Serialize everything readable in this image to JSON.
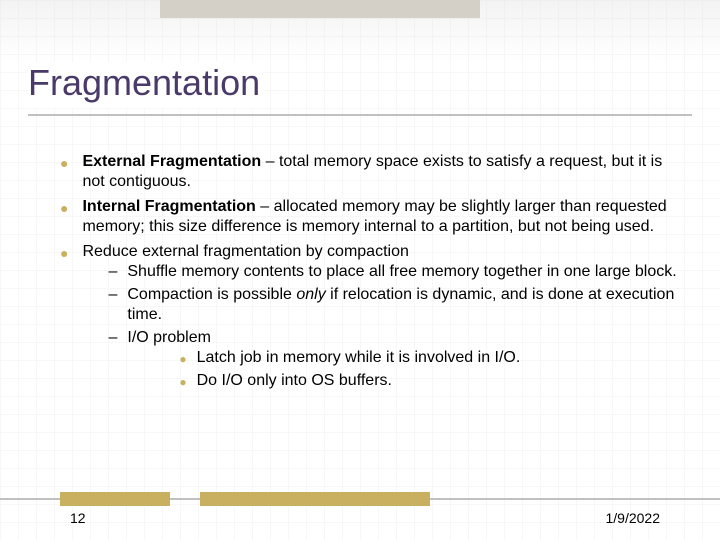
{
  "title": "Fragmentation",
  "bullets": [
    {
      "term": "External Fragmentation",
      "rest": " – total memory space exists to satisfy a request, but it is not contiguous."
    },
    {
      "term": "Internal Fragmentation",
      "rest": " – allocated memory may be slightly larger than requested memory; this size difference is memory internal to a partition, but not being used."
    },
    {
      "term": "",
      "rest": "Reduce external fragmentation by compaction",
      "sub": [
        {
          "text": "Shuffle memory contents to place all free memory together in one large block."
        },
        {
          "pre": "Compaction is possible ",
          "italic": "only",
          "post": " if relocation is dynamic, and is done at execution time."
        },
        {
          "text": "I/O problem",
          "subsub": [
            "Latch job in memory while it is involved in I/O.",
            "Do I/O only into OS buffers."
          ]
        }
      ]
    }
  ],
  "footer": {
    "page": "12",
    "date": "1/9/2022"
  },
  "colors": {
    "title_color": "#4a3a6a",
    "accent": "#c9b060",
    "line": "#c0c0c0"
  }
}
